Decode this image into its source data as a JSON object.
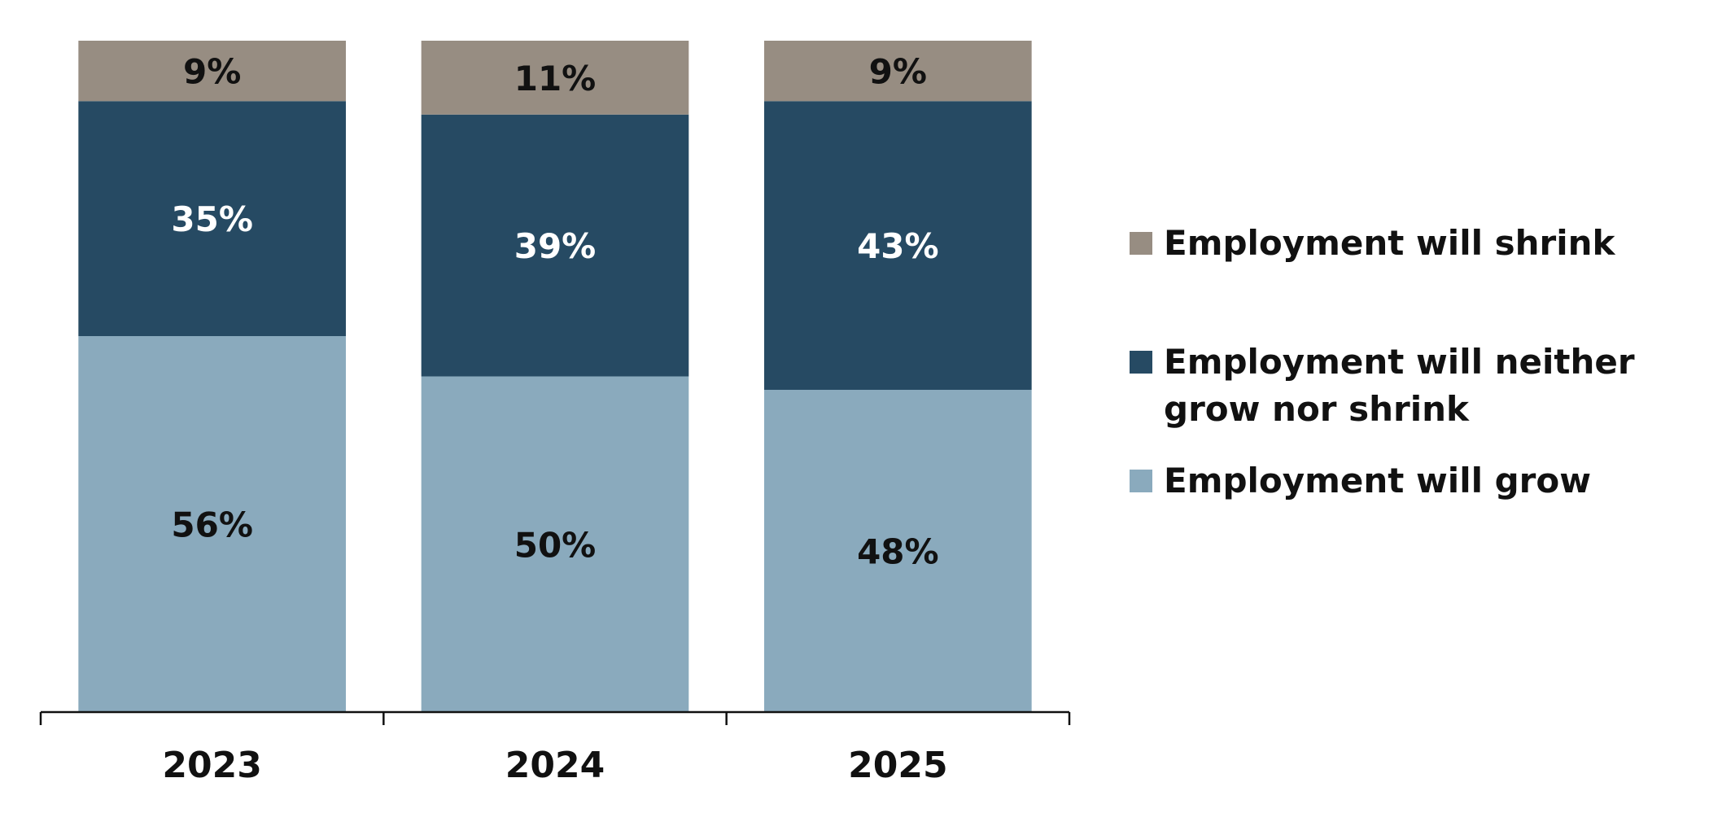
{
  "chart_data": {
    "type": "stacked_bar",
    "categories": [
      "2023",
      "2024",
      "2025"
    ],
    "series": [
      {
        "name": "Employment will grow",
        "color": "#8aaabd",
        "values": [
          56,
          50,
          48
        ],
        "value_labels": [
          "56%",
          "50%",
          "48%"
        ]
      },
      {
        "name": "Employment will neither grow nor shrink",
        "color": "#264a63",
        "values": [
          35,
          39,
          43
        ],
        "value_labels": [
          "35%",
          "39%",
          "43%"
        ]
      },
      {
        "name": "Employment will shrink",
        "color": "#978d82",
        "values": [
          9,
          11,
          9
        ],
        "value_labels": [
          "9%",
          "11%",
          "9%"
        ]
      }
    ],
    "ylim": [
      0,
      100
    ],
    "legend": "right"
  }
}
